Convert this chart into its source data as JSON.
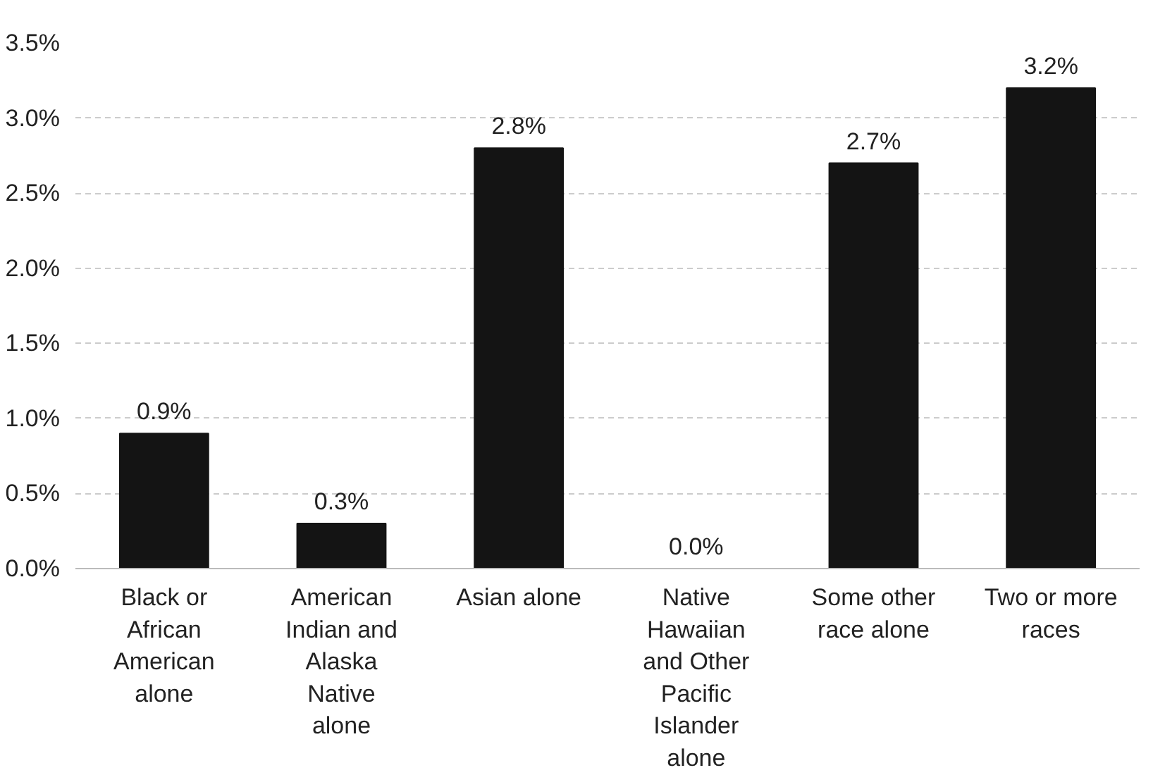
{
  "chart_data": {
    "type": "bar",
    "categories": [
      "Black or African American alone",
      "American Indian and Alaska Native alone",
      "Asian alone",
      "Native Hawaiian and Other Pacific Islander alone",
      "Some other race alone",
      "Two or more races"
    ],
    "values": [
      0.9,
      0.3,
      2.8,
      0.0,
      2.7,
      3.2
    ],
    "color": "#141414",
    "ylim": [
      0,
      3.5
    ],
    "yticks": [
      {
        "value": 0,
        "label": "0.0%"
      },
      {
        "value": 0.5,
        "label": "0.5%"
      },
      {
        "value": 1,
        "label": "1.0%"
      },
      {
        "value": 1.5,
        "label": "1.5%"
      },
      {
        "value": 2,
        "label": "2.0%"
      },
      {
        "value": 2.5,
        "label": "2.5%"
      },
      {
        "value": 3,
        "label": "3.0%"
      },
      {
        "value": 3.5,
        "label": "3.5%"
      }
    ],
    "value_labels": [
      "0.9%",
      "0.3%",
      "2.8%",
      "0.0%",
      "2.7%",
      "3.2%"
    ],
    "grid": "y"
  }
}
